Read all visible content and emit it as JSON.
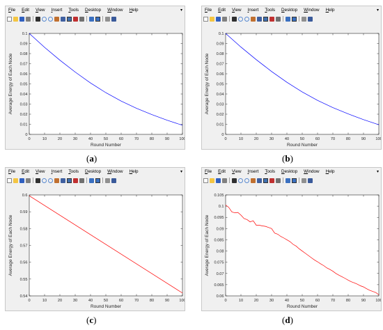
{
  "window": {
    "menu": [
      "File",
      "Edit",
      "View",
      "Insert",
      "Tools",
      "Desktop",
      "Window",
      "Help"
    ],
    "menu_arrow": "▾",
    "toolbar_icons": [
      "new-figure-icon",
      "open-icon",
      "save-icon",
      "print-icon",
      "pointer-icon",
      "zoom-in-icon",
      "zoom-out-icon",
      "pan-icon",
      "rotate-icon",
      "data-cursor-icon",
      "brush-icon",
      "link-icon",
      "colorbar-icon",
      "legend-icon",
      "hide-plot-tools-icon",
      "show-plot-tools-icon"
    ]
  },
  "captions": {
    "a": {
      "open": "(",
      "letter": "a",
      "close": ")"
    },
    "b": {
      "open": "(",
      "letter": "b",
      "close": ")"
    },
    "c": {
      "open": "(",
      "letter": "c",
      "close": ")"
    },
    "d": {
      "open": "(",
      "letter": "d",
      "close": ")"
    }
  },
  "chart_data": [
    {
      "id": "a",
      "type": "line",
      "xlabel": "Round Number",
      "ylabel": "Average Energy of Each Node",
      "xlim": [
        0,
        100
      ],
      "ylim": [
        0,
        0.1
      ],
      "xticks": [
        "0",
        "10",
        "20",
        "30",
        "40",
        "50",
        "60",
        "70",
        "80",
        "90",
        "100"
      ],
      "yticks": [
        "0",
        "0.01",
        "0.02",
        "0.03",
        "0.04",
        "0.05",
        "0.06",
        "0.07",
        "0.08",
        "0.09",
        "0.1"
      ],
      "color": "#0000ff",
      "x": [
        0,
        10,
        20,
        30,
        40,
        50,
        60,
        70,
        80,
        90,
        100
      ],
      "y": [
        0.1,
        0.0862,
        0.0735,
        0.0617,
        0.0509,
        0.0413,
        0.033,
        0.0258,
        0.0196,
        0.014,
        0.009
      ]
    },
    {
      "id": "b",
      "type": "line",
      "xlabel": "Round Number",
      "ylabel": "Average Energy of Each Node",
      "xlim": [
        0,
        100
      ],
      "ylim": [
        0,
        0.1
      ],
      "xticks": [
        "0",
        "10",
        "20",
        "30",
        "40",
        "50",
        "60",
        "70",
        "80",
        "90",
        "100"
      ],
      "yticks": [
        "0",
        "0.01",
        "0.02",
        "0.03",
        "0.04",
        "0.05",
        "0.06",
        "0.07",
        "0.08",
        "0.09",
        "0.1"
      ],
      "color": "#0000ff",
      "x": [
        0,
        10,
        20,
        30,
        40,
        50,
        60,
        70,
        80,
        90,
        100
      ],
      "y": [
        0.1,
        0.0865,
        0.074,
        0.0623,
        0.0516,
        0.042,
        0.0337,
        0.0265,
        0.0203,
        0.0146,
        0.0095
      ]
    },
    {
      "id": "c",
      "type": "line",
      "xlabel": "Round Number",
      "ylabel": "Average Energy of Each Node",
      "xlim": [
        0,
        100
      ],
      "ylim": [
        0.54,
        0.6
      ],
      "xticks": [
        "0",
        "10",
        "20",
        "30",
        "40",
        "50",
        "60",
        "70",
        "80",
        "90",
        "100"
      ],
      "yticks": [
        "0.54",
        "0.55",
        "0.56",
        "0.57",
        "0.58",
        "0.59",
        "0.6"
      ],
      "color": "#ff0000",
      "x": [
        0,
        100
      ],
      "y": [
        0.5995,
        0.5417
      ]
    },
    {
      "id": "d",
      "type": "line",
      "xlabel": "Round Number",
      "ylabel": "Average Energy of Each Node",
      "xlim": [
        0,
        100
      ],
      "ylim": [
        0.06,
        0.105
      ],
      "xticks": [
        "0",
        "10",
        "20",
        "30",
        "40",
        "50",
        "60",
        "70",
        "80",
        "90",
        "100"
      ],
      "yticks": [
        "0.06",
        "0.065",
        "0.07",
        "0.075",
        "0.08",
        "0.085",
        "0.09",
        "0.095",
        "0.1",
        "0.105"
      ],
      "color": "#ff0000",
      "x": [
        0,
        2,
        4,
        6,
        8,
        10,
        12,
        14,
        16,
        18,
        20,
        22,
        24,
        26,
        28,
        30,
        32,
        34,
        36,
        38,
        40,
        42,
        44,
        46,
        48,
        50,
        52,
        54,
        56,
        58,
        60,
        62,
        64,
        66,
        68,
        70,
        72,
        74,
        76,
        78,
        80,
        82,
        84,
        86,
        88,
        90,
        92,
        94,
        96,
        98,
        100
      ],
      "y": [
        0.1005,
        0.0995,
        0.0975,
        0.097,
        0.0972,
        0.096,
        0.0945,
        0.094,
        0.093,
        0.0935,
        0.0915,
        0.0915,
        0.0912,
        0.091,
        0.0905,
        0.09,
        0.088,
        0.0875,
        0.0865,
        0.0858,
        0.085,
        0.0842,
        0.083,
        0.0822,
        0.081,
        0.08,
        0.079,
        0.078,
        0.077,
        0.076,
        0.0752,
        0.0743,
        0.0735,
        0.0725,
        0.0718,
        0.071,
        0.07,
        0.0692,
        0.0685,
        0.0678,
        0.067,
        0.0663,
        0.0658,
        0.0652,
        0.0645,
        0.064,
        0.0632,
        0.0625,
        0.062,
        0.0615,
        0.0605
      ]
    }
  ]
}
